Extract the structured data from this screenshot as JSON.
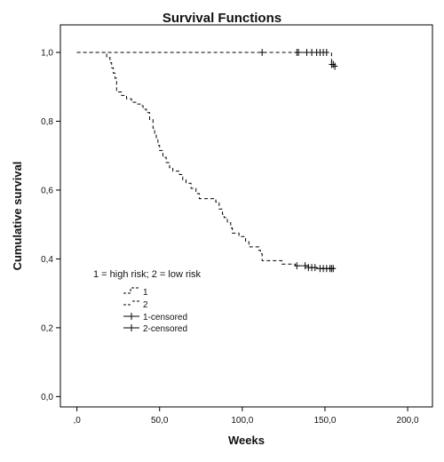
{
  "chart_data": {
    "type": "line",
    "title": "Survival Functions",
    "xlabel": "Weeks",
    "ylabel": "Cumulative survival",
    "xlim": [
      -10,
      215
    ],
    "ylim": [
      -0.03,
      1.08
    ],
    "x_ticks": [
      0,
      50,
      100,
      150,
      200
    ],
    "x_tick_labels": [
      ",0",
      "50,0",
      "100,0",
      "150,0",
      "200,0"
    ],
    "y_ticks": [
      0,
      0.2,
      0.4,
      0.6,
      0.8,
      1.0
    ],
    "y_tick_labels": [
      "0,0",
      "0,2",
      "0,4",
      "0,6",
      "0,8",
      "1,0"
    ],
    "grid": false,
    "legend": {
      "title": "1 = high risk; 2 = low risk",
      "placement": "lower-left",
      "entries": [
        "1",
        "2",
        "1-censored",
        "2-censored"
      ]
    },
    "series": [
      {
        "name": "1",
        "style": "step-dashed",
        "points": [
          [
            0,
            1.0
          ],
          [
            16,
            1.0
          ],
          [
            18,
            0.985
          ],
          [
            20,
            0.97
          ],
          [
            21,
            0.955
          ],
          [
            22,
            0.94
          ],
          [
            23,
            0.925
          ],
          [
            24,
            0.885
          ],
          [
            27,
            0.875
          ],
          [
            30,
            0.865
          ],
          [
            33,
            0.855
          ],
          [
            36,
            0.85
          ],
          [
            39,
            0.845
          ],
          [
            40,
            0.835
          ],
          [
            42,
            0.825
          ],
          [
            44,
            0.805
          ],
          [
            46,
            0.78
          ],
          [
            47,
            0.76
          ],
          [
            48,
            0.75
          ],
          [
            49,
            0.73
          ],
          [
            50,
            0.715
          ],
          [
            52,
            0.695
          ],
          [
            54,
            0.68
          ],
          [
            56,
            0.665
          ],
          [
            58,
            0.655
          ],
          [
            62,
            0.645
          ],
          [
            64,
            0.63
          ],
          [
            66,
            0.62
          ],
          [
            69,
            0.605
          ],
          [
            72,
            0.59
          ],
          [
            74,
            0.575
          ],
          [
            84,
            0.565
          ],
          [
            86,
            0.545
          ],
          [
            88,
            0.53
          ],
          [
            89,
            0.52
          ],
          [
            91,
            0.505
          ],
          [
            93,
            0.49
          ],
          [
            94,
            0.475
          ],
          [
            98,
            0.465
          ],
          [
            102,
            0.45
          ],
          [
            104,
            0.435
          ],
          [
            110,
            0.425
          ],
          [
            111,
            0.415
          ],
          [
            112,
            0.395
          ],
          [
            124,
            0.385
          ],
          [
            132,
            0.38
          ],
          [
            140,
            0.375
          ],
          [
            145,
            0.372
          ],
          [
            156,
            0.372
          ]
        ],
        "censored": [
          133,
          138,
          140,
          142,
          144,
          147,
          149,
          151,
          153,
          154,
          155
        ]
      },
      {
        "name": "2",
        "style": "step-dashed",
        "points": [
          [
            0,
            1.0
          ],
          [
            153,
            1.0
          ],
          [
            154,
            0.965
          ],
          [
            156,
            0.96
          ]
        ],
        "censored": [
          112,
          133,
          134,
          139,
          142,
          145,
          147,
          149,
          151,
          154,
          155,
          156
        ]
      }
    ]
  }
}
